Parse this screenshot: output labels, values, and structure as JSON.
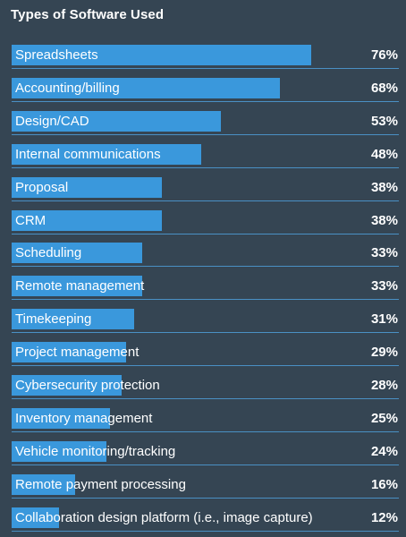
{
  "chart_data": {
    "type": "bar",
    "orientation": "horizontal",
    "title": "Types of Software Used",
    "value_format": "percent",
    "xlim": [
      0,
      100
    ],
    "colors": {
      "background": "#354553",
      "bar": "#3a98dc",
      "divider": "#4a90c4",
      "text": "#ffffff"
    },
    "categories": [
      "Spreadsheets",
      "Accounting/billing",
      "Design/CAD",
      "Internal communications",
      "Proposal",
      "CRM",
      "Scheduling",
      "Remote management",
      "Timekeeping",
      "Project management",
      "Cybersecurity protection",
      "Inventory management",
      "Vehicle monitoring/tracking",
      "Remote payment processing",
      "Collaboration design platform (i.e., image capture)"
    ],
    "values": [
      76,
      68,
      53,
      48,
      38,
      38,
      33,
      33,
      31,
      29,
      28,
      25,
      24,
      16,
      12
    ],
    "value_labels": [
      "76%",
      "68%",
      "53%",
      "48%",
      "38%",
      "38%",
      "33%",
      "33%",
      "31%",
      "29%",
      "28%",
      "25%",
      "24%",
      "16%",
      "12%"
    ]
  }
}
